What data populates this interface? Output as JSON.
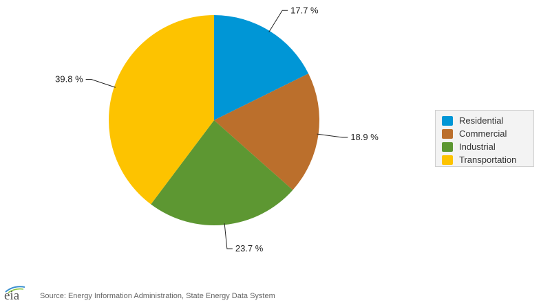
{
  "chart_data": {
    "type": "pie",
    "series": [
      {
        "name": "Residential",
        "value": 17.7,
        "label": "17.7 %",
        "color": "#0096d6"
      },
      {
        "name": "Commercial",
        "value": 18.9,
        "label": "18.9 %",
        "color": "#bb6f2c"
      },
      {
        "name": "Industrial",
        "value": 23.7,
        "label": "23.7 %",
        "color": "#5d9732"
      },
      {
        "name": "Transportation",
        "value": 39.8,
        "label": "39.8 %",
        "color": "#fdc300"
      }
    ],
    "start_angle_deg": 0,
    "direction": "clockwise",
    "legend_position": "right"
  },
  "footer": {
    "logo_text": "eia",
    "source": "Source: Energy Information Administration, State Energy Data System"
  }
}
